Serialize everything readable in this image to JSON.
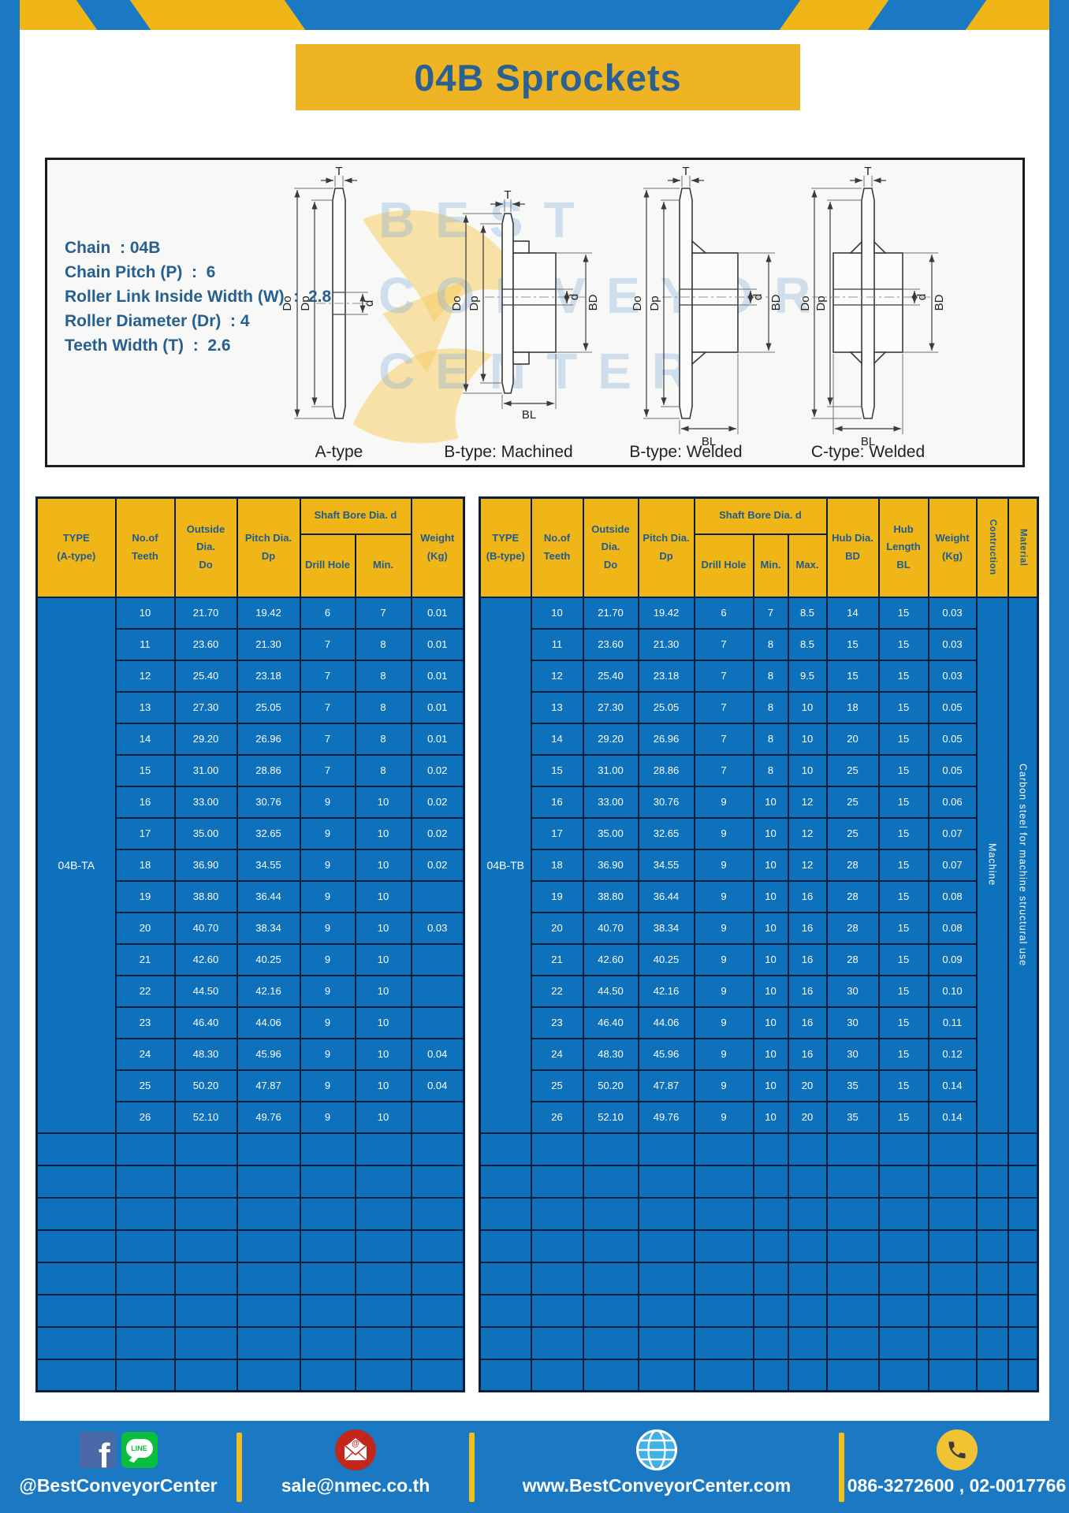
{
  "page": {
    "title": "04B Sprockets"
  },
  "specs": {
    "lines": [
      "Chain  : 04B",
      "Chain Pitch (P)  :  6",
      "Roller Link Inside Width (W)  :  2.8",
      "Roller Diameter (Dr)  : 4",
      "Teeth Width (T)  :  2.6"
    ]
  },
  "diagram": {
    "watermark_lines": [
      "BEST",
      "CONVEYOR",
      "CENTER"
    ],
    "captions": [
      "A-type",
      "B-type: Machined",
      "B-type: Welded",
      "C-type: Welded"
    ],
    "labels": {
      "T": "T",
      "Do": "Do",
      "Dp": "Dp",
      "d": "d",
      "BD": "BD",
      "BL": "BL"
    }
  },
  "table_a": {
    "headers": {
      "type": "TYPE\n(A-type)",
      "teeth": "No.of\nTeeth",
      "outside": "Outside\nDia.\nDo",
      "pitch": "Pitch Dia.\nDp",
      "shaft": "Shaft Bore Dia. d",
      "drill": "Drill Hole",
      "min": "Min.",
      "weight": "Weight\n(Kg)"
    },
    "type_label": "04B-TA",
    "empty_row_count": 8,
    "rows": [
      [
        "10",
        "21.70",
        "19.42",
        "6",
        "7",
        "0.01"
      ],
      [
        "11",
        "23.60",
        "21.30",
        "7",
        "8",
        "0.01"
      ],
      [
        "12",
        "25.40",
        "23.18",
        "7",
        "8",
        "0.01"
      ],
      [
        "13",
        "27.30",
        "25.05",
        "7",
        "8",
        "0.01"
      ],
      [
        "14",
        "29.20",
        "26.96",
        "7",
        "8",
        "0.01"
      ],
      [
        "15",
        "31.00",
        "28.86",
        "7",
        "8",
        "0.02"
      ],
      [
        "16",
        "33.00",
        "30.76",
        "9",
        "10",
        "0.02"
      ],
      [
        "17",
        "35.00",
        "32.65",
        "9",
        "10",
        "0.02"
      ],
      [
        "18",
        "36.90",
        "34.55",
        "9",
        "10",
        "0.02"
      ],
      [
        "19",
        "38.80",
        "36.44",
        "9",
        "10",
        ""
      ],
      [
        "20",
        "40.70",
        "38.34",
        "9",
        "10",
        "0.03"
      ],
      [
        "21",
        "42.60",
        "40.25",
        "9",
        "10",
        ""
      ],
      [
        "22",
        "44.50",
        "42.16",
        "9",
        "10",
        ""
      ],
      [
        "23",
        "46.40",
        "44.06",
        "9",
        "10",
        ""
      ],
      [
        "24",
        "48.30",
        "45.96",
        "9",
        "10",
        "0.04"
      ],
      [
        "25",
        "50.20",
        "47.87",
        "9",
        "10",
        "0.04"
      ],
      [
        "26",
        "52.10",
        "49.76",
        "9",
        "10",
        ""
      ]
    ]
  },
  "table_b": {
    "headers": {
      "type": "TYPE\n(B-type)",
      "teeth": "No.of\nTeeth",
      "outside": "Outside\nDia.\nDo",
      "pitch": "Pitch Dia.\nDp",
      "shaft": "Shaft Bore Dia. d",
      "drill": "Drill Hole",
      "min": "Min.",
      "max": "Max.",
      "hub_dia": "Hub Dia.\nBD",
      "hub_len": "Hub\nLength\nBL",
      "weight": "Weight\n(Kg)",
      "construction": "Contruction",
      "material": "Material"
    },
    "type_label": "04B-TB",
    "construction_value": "Machine",
    "material_value": "Carbon steel for machine structural use",
    "empty_row_count": 8,
    "rows": [
      [
        "10",
        "21.70",
        "19.42",
        "6",
        "7",
        "8.5",
        "14",
        "15",
        "0.03"
      ],
      [
        "11",
        "23.60",
        "21.30",
        "7",
        "8",
        "8.5",
        "15",
        "15",
        "0.03"
      ],
      [
        "12",
        "25.40",
        "23.18",
        "7",
        "8",
        "9.5",
        "15",
        "15",
        "0.03"
      ],
      [
        "13",
        "27.30",
        "25.05",
        "7",
        "8",
        "10",
        "18",
        "15",
        "0.05"
      ],
      [
        "14",
        "29.20",
        "26.96",
        "7",
        "8",
        "10",
        "20",
        "15",
        "0.05"
      ],
      [
        "15",
        "31.00",
        "28.86",
        "7",
        "8",
        "10",
        "25",
        "15",
        "0.05"
      ],
      [
        "16",
        "33.00",
        "30.76",
        "9",
        "10",
        "12",
        "25",
        "15",
        "0.06"
      ],
      [
        "17",
        "35.00",
        "32.65",
        "9",
        "10",
        "12",
        "25",
        "15",
        "0.07"
      ],
      [
        "18",
        "36.90",
        "34.55",
        "9",
        "10",
        "12",
        "28",
        "15",
        "0.07"
      ],
      [
        "19",
        "38.80",
        "36.44",
        "9",
        "10",
        "16",
        "28",
        "15",
        "0.08"
      ],
      [
        "20",
        "40.70",
        "38.34",
        "9",
        "10",
        "16",
        "28",
        "15",
        "0.08"
      ],
      [
        "21",
        "42.60",
        "40.25",
        "9",
        "10",
        "16",
        "28",
        "15",
        "0.09"
      ],
      [
        "22",
        "44.50",
        "42.16",
        "9",
        "10",
        "16",
        "30",
        "15",
        "0.10"
      ],
      [
        "23",
        "46.40",
        "44.06",
        "9",
        "10",
        "16",
        "30",
        "15",
        "0.11"
      ],
      [
        "24",
        "48.30",
        "45.96",
        "9",
        "10",
        "16",
        "30",
        "15",
        "0.12"
      ],
      [
        "25",
        "50.20",
        "47.87",
        "9",
        "10",
        "20",
        "35",
        "15",
        "0.14"
      ],
      [
        "26",
        "52.10",
        "49.76",
        "9",
        "10",
        "20",
        "35",
        "15",
        "0.14"
      ]
    ]
  },
  "footer": {
    "line_label": "LINE",
    "facebook_label": "@BestConveyorCenter",
    "email": "sale@nmec.co.th",
    "website": "www.BestConveyorCenter.com",
    "phone": "086-3272600 , 02-0017766"
  }
}
